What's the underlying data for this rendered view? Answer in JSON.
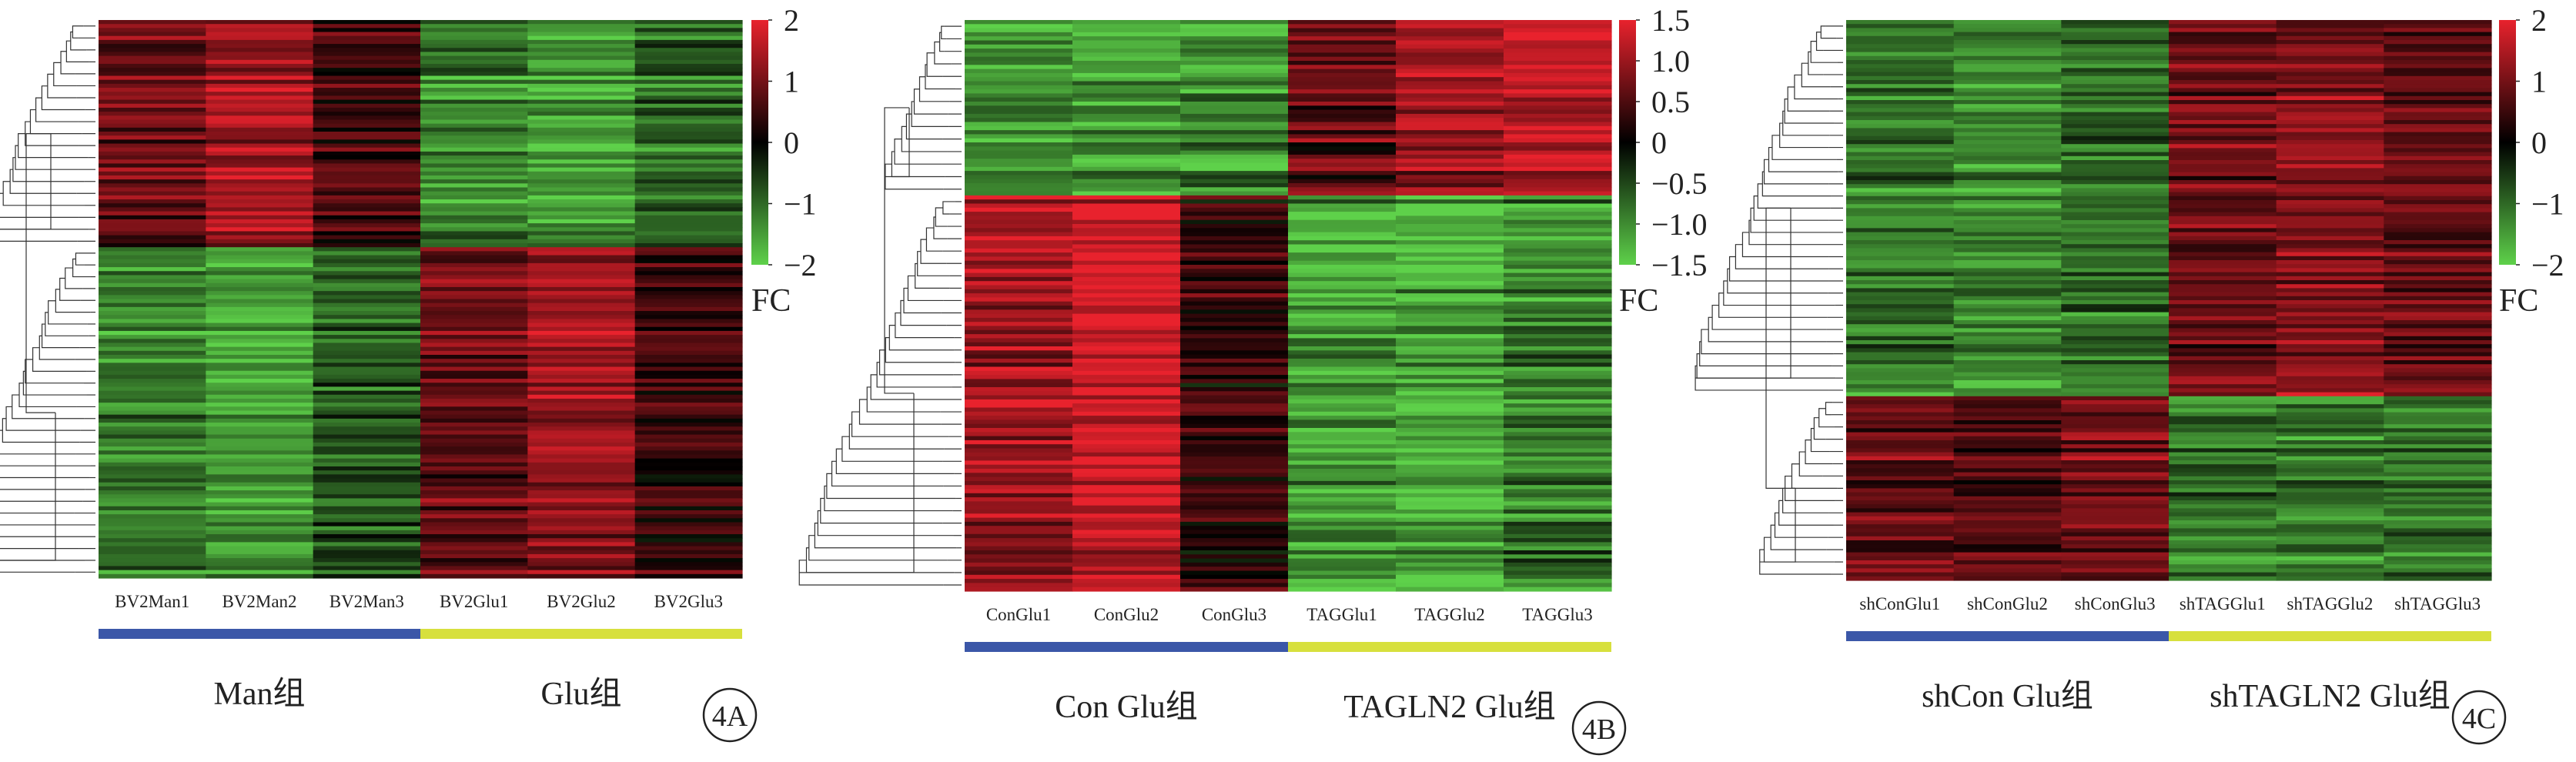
{
  "colors": {
    "low": "#5ed14a",
    "mid": "#000000",
    "high": "#e8222d",
    "group1_bar": "#3b57a8",
    "group2_bar": "#d7e03d"
  },
  "chart_data": [
    {
      "type": "heatmap",
      "panel_label": "4A",
      "legend_label": "FC",
      "colorbar": {
        "min": -2,
        "max": 2,
        "ticks": [
          "2",
          "1",
          "0",
          "−1",
          "−2"
        ]
      },
      "columns": [
        "BV2Man1",
        "BV2Man2",
        "BV2Man3",
        "BV2Glu1",
        "BV2Glu2",
        "BV2Glu3"
      ],
      "groups": [
        {
          "name": "Man组",
          "columns": 3,
          "color": "group1_bar"
        },
        {
          "name": "Glu组",
          "columns": 3,
          "color": "group2_bar"
        }
      ],
      "clusters": [
        {
          "row_fraction": 0.41,
          "values": [
            0.9,
            1.4,
            0.6,
            -1.3,
            -1.5,
            -1.0
          ]
        },
        {
          "row_fraction": 0.59,
          "values": [
            -1.2,
            -1.5,
            -0.9,
            0.9,
            1.3,
            0.5
          ]
        }
      ]
    },
    {
      "type": "heatmap",
      "panel_label": "4B",
      "legend_label": "FC",
      "colorbar": {
        "min": -1.5,
        "max": 1.5,
        "ticks": [
          "1.5",
          "1.0",
          "0.5",
          "0",
          "−0.5",
          "−1.0",
          "−1.5"
        ]
      },
      "columns": [
        "ConGlu1",
        "ConGlu2",
        "ConGlu3",
        "TAGGlu1",
        "TAGGlu2",
        "TAGGlu3"
      ],
      "groups": [
        {
          "name": "Con Glu组",
          "columns": 3,
          "color": "group1_bar"
        },
        {
          "name": "TAGLN2 Glu组",
          "columns": 3,
          "color": "group2_bar"
        }
      ],
      "clusters": [
        {
          "row_fraction": 0.31,
          "values": [
            -1.0,
            -1.1,
            -1.0,
            0.6,
            1.0,
            1.2
          ]
        },
        {
          "row_fraction": 0.69,
          "values": [
            1.0,
            1.3,
            0.3,
            -1.1,
            -1.2,
            -0.9
          ]
        }
      ]
    },
    {
      "type": "heatmap",
      "panel_label": "4C",
      "legend_label": "FC",
      "colorbar": {
        "min": -2,
        "max": 2,
        "ticks": [
          "2",
          "1",
          "0",
          "−1",
          "−2"
        ]
      },
      "columns": [
        "shConGlu1",
        "shConGlu2",
        "shConGlu3",
        "shTAGGlu1",
        "shTAGGlu2",
        "shTAGGlu3"
      ],
      "groups": [
        {
          "name": "shCon Glu组",
          "columns": 3,
          "color": "group1_bar"
        },
        {
          "name": "shTAGLN2 Glu组",
          "columns": 3,
          "color": "group2_bar"
        }
      ],
      "clusters": [
        {
          "row_fraction": 0.67,
          "values": [
            -1.1,
            -1.2,
            -1.0,
            0.9,
            1.1,
            0.8
          ]
        },
        {
          "row_fraction": 0.33,
          "values": [
            0.9,
            0.7,
            1.0,
            -1.1,
            -1.2,
            -1.1
          ]
        }
      ]
    }
  ]
}
